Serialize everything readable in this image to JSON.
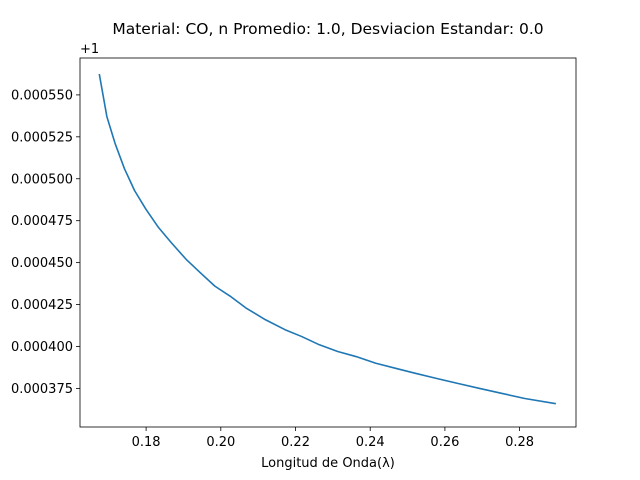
{
  "chart_data": {
    "type": "line",
    "title": "Material: CO, n Promedio: 1.0, Desviacion Estandar: 0.0",
    "xlabel": "Longitud de Onda(λ)",
    "ylabel": "",
    "y_offset_label": "+1",
    "xlim": [
      0.1623,
      0.2951
    ],
    "ylim": [
      0.000352,
      0.000572
    ],
    "x_ticks": [
      0.18,
      0.2,
      0.22,
      0.24,
      0.26,
      0.28
    ],
    "x_tick_labels": [
      "0.18",
      "0.20",
      "0.22",
      "0.24",
      "0.26",
      "0.28"
    ],
    "y_ticks": [
      0.000375,
      0.0004,
      0.000425,
      0.00045,
      0.000475,
      0.0005,
      0.000525,
      0.00055
    ],
    "y_tick_labels": [
      "0.000375",
      "0.000400",
      "0.000425",
      "0.000450",
      "0.000475",
      "0.000500",
      "0.000525",
      "0.000550"
    ],
    "grid": false,
    "legend": "none",
    "series": [
      {
        "color": "#1f77b4",
        "x": [
          0.1675,
          0.1695,
          0.1717,
          0.1742,
          0.1769,
          0.1799,
          0.1833,
          0.1867,
          0.1907,
          0.1945,
          0.1984,
          0.2025,
          0.2067,
          0.2119,
          0.2172,
          0.2216,
          0.2264,
          0.2313,
          0.2362,
          0.2415,
          0.2468,
          0.2521,
          0.2577,
          0.2634,
          0.2693,
          0.2753,
          0.2814,
          0.2895
        ],
        "y": [
          0.000562,
          0.000537,
          0.000521,
          0.000506,
          0.000493,
          0.000482,
          0.000471,
          0.000462,
          0.000452,
          0.000444,
          0.000436,
          0.00043,
          0.000423,
          0.000416,
          0.00041,
          0.000406,
          0.000401,
          0.000397,
          0.000394,
          0.00039,
          0.000387,
          0.000384,
          0.000381,
          0.000378,
          0.000375,
          0.000372,
          0.000369,
          0.000366
        ]
      }
    ]
  }
}
